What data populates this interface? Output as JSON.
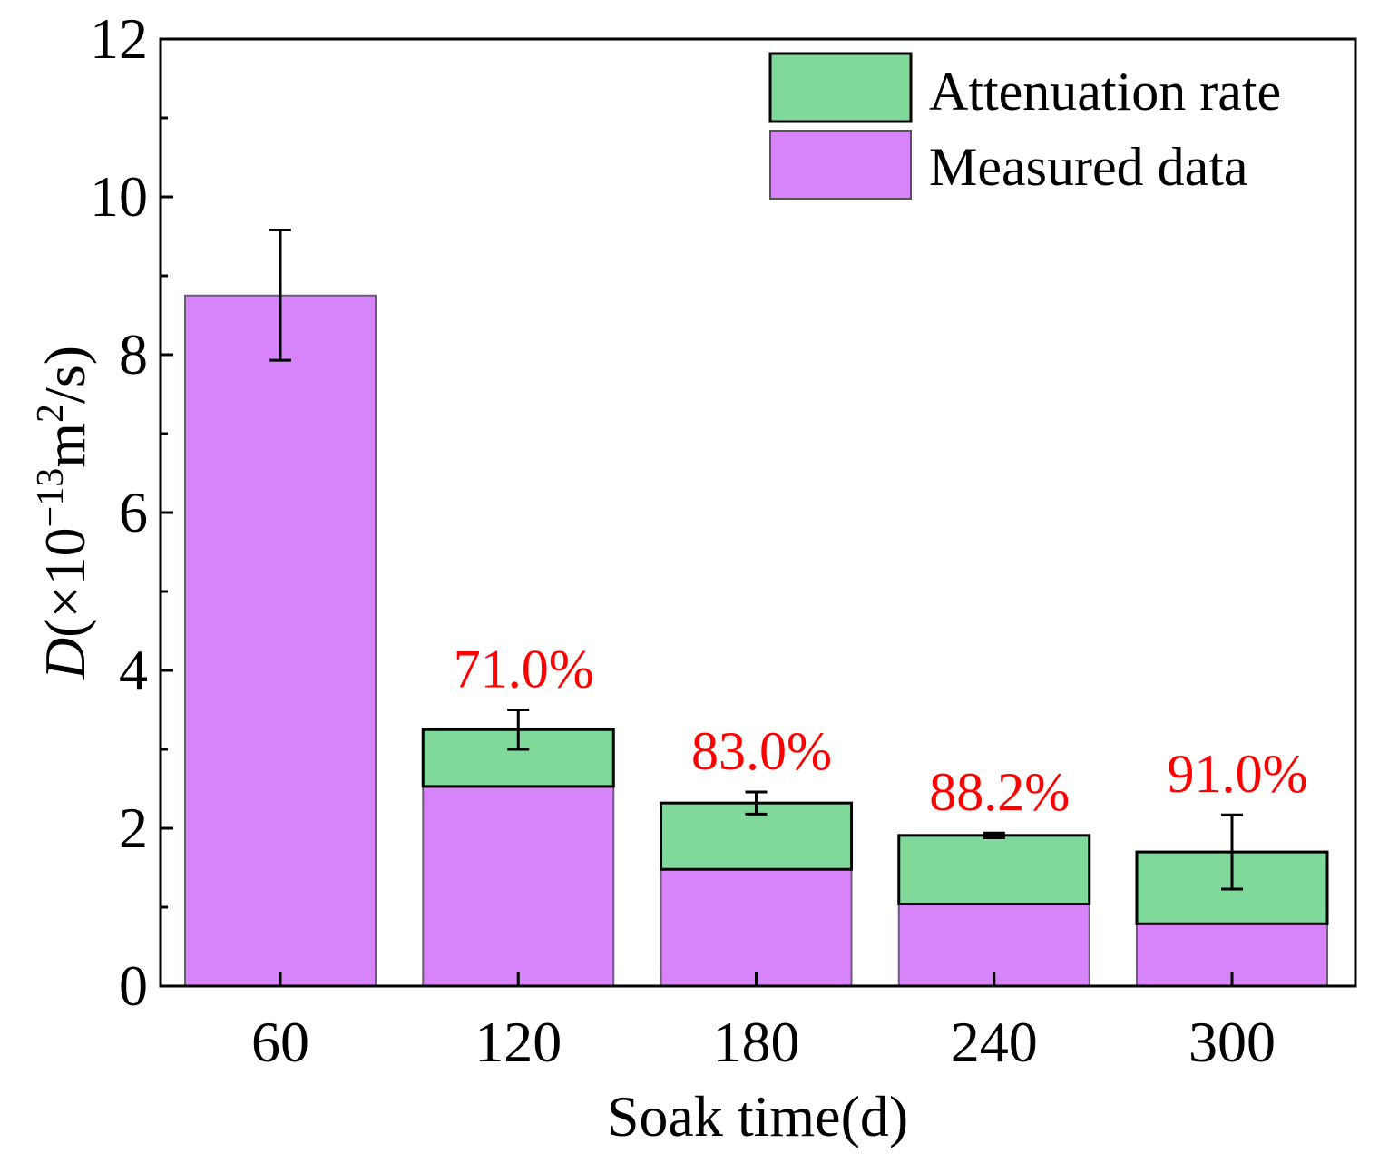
{
  "chart_data": {
    "type": "bar",
    "stacked": true,
    "title": "",
    "xlabel": "Soak time(d)",
    "ylabel": {
      "italic": "D",
      "prefix": "(×10",
      "exponent": "−13",
      "unit": "m",
      "unit_exponent": "2",
      "suffix": "/s)"
    },
    "ylim": [
      0,
      12
    ],
    "yticks": [
      0,
      2,
      4,
      6,
      8,
      10,
      12
    ],
    "categories": [
      "60",
      "120",
      "180",
      "240",
      "300"
    ],
    "series": [
      {
        "name": "Measured data",
        "color": "#d783f9",
        "values": [
          8.75,
          2.53,
          1.48,
          1.04,
          0.79
        ]
      },
      {
        "name": "Attenuation rate",
        "color": "#7ed99a",
        "values": [
          0,
          0.72,
          0.84,
          0.87,
          0.91
        ]
      }
    ],
    "error_bars": [
      {
        "center": 8.75,
        "low": 7.93,
        "high": 9.58
      },
      {
        "center": 3.25,
        "low": 3.0,
        "high": 3.5
      },
      {
        "center": 2.32,
        "low": 2.18,
        "high": 2.46
      },
      {
        "center": 1.91,
        "low": 1.88,
        "high": 1.94
      },
      {
        "center": 1.7,
        "low": 1.23,
        "high": 2.17
      }
    ],
    "annotations": [
      "",
      "71.0%",
      "83.0%",
      "88.2%",
      "91.0%"
    ],
    "annotation_color": "#ff0000",
    "legend": {
      "placement": "top-right",
      "entries": [
        "Attenuation rate",
        "Measured data"
      ]
    }
  }
}
